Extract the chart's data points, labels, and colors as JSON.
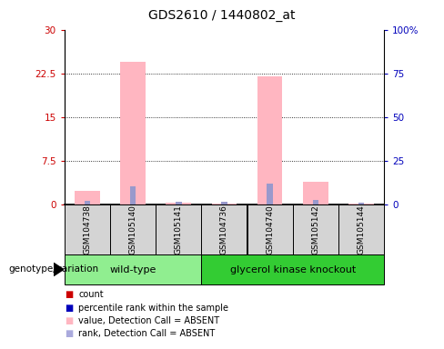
{
  "title": "GDS2610 / 1440802_at",
  "categories": [
    "GSM104738",
    "GSM105140",
    "GSM105141",
    "GSM104736",
    "GSM104740",
    "GSM105142",
    "GSM105144"
  ],
  "pink_bars": [
    2.3,
    24.5,
    0.2,
    0.15,
    22.0,
    3.8,
    0.15
  ],
  "blue_bars": [
    0.5,
    3.0,
    0.4,
    0.35,
    3.5,
    0.7,
    0.25
  ],
  "left_ylim": [
    0,
    30
  ],
  "right_ylim": [
    0,
    100
  ],
  "left_yticks": [
    0,
    7.5,
    15,
    22.5,
    30
  ],
  "right_yticks": [
    0,
    25,
    50,
    75,
    100
  ],
  "left_yticklabels": [
    "0",
    "7.5",
    "15",
    "22.5",
    "30"
  ],
  "right_yticklabels": [
    "0",
    "25",
    "50",
    "75",
    "100%"
  ],
  "group_wt_label": "wild-type",
  "group_wt_color": "#90ee90",
  "group_wt_indices": [
    0,
    1,
    2
  ],
  "group_gk_label": "glycerol kinase knockout",
  "group_gk_color": "#33cc33",
  "group_gk_indices": [
    3,
    4,
    5,
    6
  ],
  "xlabel_label": "genotype/variation",
  "pink_color": "#ffb6c1",
  "blue_color": "#9999cc",
  "red_color": "#cc0000",
  "darkblue_color": "#0000bb",
  "legend_labels": [
    "count",
    "percentile rank within the sample",
    "value, Detection Call = ABSENT",
    "rank, Detection Call = ABSENT"
  ],
  "legend_colors": [
    "#cc0000",
    "#0000bb",
    "#ffb6c1",
    "#aaaadd"
  ]
}
